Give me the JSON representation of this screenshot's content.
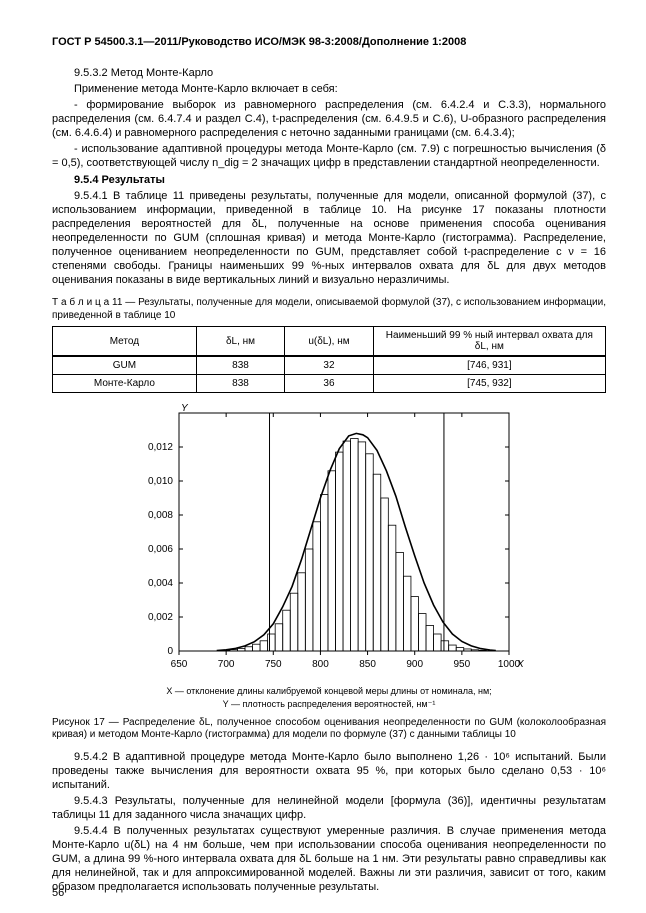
{
  "runningHead": "ГОСТ Р 54500.3.1—2011/Руководство ИСО/МЭК 98-3:2008/Дополнение 1:2008",
  "sec_9_5_3_2_title": "9.5.3.2 Метод Монте-Карло",
  "p1": "Применение метода Монте-Карло включает в себя:",
  "p2": "- формирование выборок из равномерного распределения (см. 6.4.2.4 и С.3.3), нормального распределения (см. 6.4.7.4 и раздел С.4), t-распределения (см. 6.4.9.5 и С.6), U-образного распределения (см. 6.4.6.4) и равномерного распределения с неточно заданными границами (см. 6.4.3.4);",
  "p3": "- использование адаптивной процедуры метода Монте-Карло (см. 7.9) с погрешностью вычисления (δ = 0,5), соответствующей числу n_dig = 2 значащих цифр в представлении стандартной неопределенности.",
  "sec_9_5_4_title": "9.5.4 Результаты",
  "p4": "9.5.4.1 В таблице 11 приведены результаты, полученные для модели, описанной формулой (37), с использованием информации, приведенной в таблице 10. На рисунке 17 показаны плотности распределения вероятностей для δL, полученные на основе применения способа оценивания неопределенности по GUM (сплошная кривая) и метода Монте-Карло (гистограмма). Распределение, полученное оцениванием неопределенности по GUM, представляет собой t-распределение с ν = 16 степенями свободы. Границы наименьших 99 %-ных интервалов охвата для δL для двух методов оценивания показаны в виде вертикальных линий и визуально неразличимы.",
  "tableCaption": "Т а б л и ц а  11 — Результаты, полученные для модели, описываемой формулой (37), с использованием информации, приведенной в таблице 10",
  "table": {
    "headers": [
      "Метод",
      "δL, нм",
      "u(δL), нм",
      "Наименьший 99 % ный интервал охвата для δL, нм"
    ],
    "rows": [
      [
        "GUM",
        "838",
        "32",
        "[746, 931]"
      ],
      [
        "Монте-Карло",
        "838",
        "36",
        "[745, 932]"
      ]
    ]
  },
  "chart": {
    "type": "histogram+line",
    "x_label": "X",
    "y_label": "Y",
    "x_min": 650,
    "x_max": 1000,
    "x_ticks": [
      650,
      700,
      750,
      800,
      850,
      900,
      950,
      1000
    ],
    "y_min": 0,
    "y_max": 0.014,
    "y_ticks": [
      0,
      0.002,
      0.004,
      0.006,
      0.008,
      0.01,
      0.012
    ],
    "y_tick_labels": [
      "0",
      "0,002",
      "0,004",
      "0,006",
      "0,008",
      "0,010",
      "0,012"
    ],
    "bar_color": "none",
    "bar_stroke": "#000000",
    "line_color": "#000000",
    "grid_color": "#000000",
    "background": "#ffffff",
    "bar_width_x": 8,
    "hist_x": [
      700,
      708,
      716,
      724,
      732,
      740,
      748,
      756,
      764,
      772,
      780,
      788,
      796,
      804,
      812,
      820,
      828,
      836,
      844,
      852,
      860,
      868,
      876,
      884,
      892,
      900,
      908,
      916,
      924,
      932,
      940,
      948,
      956,
      964,
      972
    ],
    "hist_y": [
      5e-05,
      8e-05,
      0.00015,
      0.00025,
      0.0004,
      0.0006,
      0.001,
      0.0016,
      0.0024,
      0.0034,
      0.0046,
      0.006,
      0.0076,
      0.0092,
      0.0106,
      0.0117,
      0.01235,
      0.0125,
      0.0123,
      0.0116,
      0.0104,
      0.009,
      0.0074,
      0.0058,
      0.0044,
      0.0032,
      0.0022,
      0.0015,
      0.001,
      0.0006,
      0.00035,
      0.0002,
      0.00012,
      7e-05,
      4e-05
    ],
    "curve_x": [
      690,
      700,
      710,
      720,
      730,
      740,
      750,
      760,
      770,
      780,
      790,
      800,
      810,
      820,
      830,
      838,
      845,
      850,
      860,
      870,
      880,
      890,
      900,
      910,
      920,
      930,
      940,
      950,
      960,
      970,
      980,
      986
    ],
    "curve_y": [
      3e-05,
      7e-05,
      0.00015,
      0.0003,
      0.00055,
      0.00095,
      0.0016,
      0.0026,
      0.0038,
      0.0054,
      0.0072,
      0.009,
      0.0106,
      0.0119,
      0.01265,
      0.0128,
      0.01272,
      0.01255,
      0.0118,
      0.0106,
      0.0091,
      0.0073,
      0.0056,
      0.004,
      0.0027,
      0.0017,
      0.001,
      0.00056,
      0.0003,
      0.00014,
      6e-05,
      3e-05
    ],
    "verticals": [
      746,
      931
    ]
  },
  "axisX": "X — отклонение длины калибруемой концевой меры длины от номинала, нм;",
  "axisY": "Y — плотность распределения вероятностей, нм⁻¹",
  "figCaption": "Рисунок 17 — Распределение δL, полученное способом оценивания неопределенности по GUM (колоколообразная кривая) и методом Монте-Карло (гистограмма) для модели по формуле (37) с данными таблицы 10",
  "p5": "9.5.4.2 В адаптивной процедуре метода Монте-Карло было выполнено 1,26 · 10⁶ испытаний. Были проведены также вычисления для вероятности охвата 95 %, при которых было сделано 0,53 · 10⁶ испытаний.",
  "p6": "9.5.4.3 Результаты, полученные для нелинейной модели [формула (36)], идентичны результатам таблицы 11 для заданного числа значащих цифр.",
  "p7": "9.5.4.4 В полученных результатах существуют умеренные различия. В случае применения метода Монте-Карло u(δL) на 4 нм больше, чем при использовании способа оценивания неопределенности по GUM, а длина 99 %-ного интервала охвата для δL больше на 1 нм. Эти результаты равно справедливы как для нелинейной, так и для аппроксимированной моделей. Важны ли эти различия, зависит от того, каким образом предполагается использовать полученные результаты.",
  "pageNumber": "56"
}
